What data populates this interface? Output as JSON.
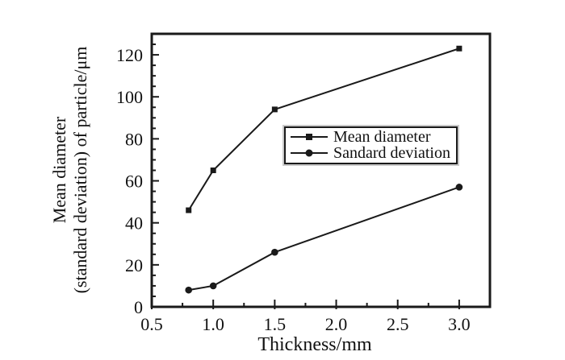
{
  "chart_data": {
    "type": "line",
    "title": "",
    "xlabel": "Thickness/mm",
    "ylabel_line1": "Mean diameter",
    "ylabel_line2": "(standard deviation) of particle/μm",
    "x": [
      0.8,
      1.0,
      1.5,
      3.0
    ],
    "series": [
      {
        "name": "Mean diameter",
        "marker": "square",
        "values": [
          46,
          65,
          94,
          123
        ]
      },
      {
        "name": "Sandard deviation",
        "marker": "circle",
        "values": [
          8,
          10,
          26,
          57
        ]
      }
    ],
    "xlim": [
      0.5,
      3.25
    ],
    "ylim": [
      0,
      130
    ],
    "x_major_ticks": [
      0.5,
      1.0,
      1.5,
      2.0,
      2.5,
      3.0
    ],
    "x_tick_labels": [
      "0.5",
      "1.0",
      "1.5",
      "2.0",
      "2.5",
      "3.0"
    ],
    "x_minor_step": 0.25,
    "y_major_ticks": [
      0,
      20,
      40,
      60,
      80,
      100,
      120
    ],
    "y_tick_labels": [
      "0",
      "20",
      "40",
      "60",
      "80",
      "100",
      "120"
    ],
    "y_minor_step": 5,
    "grid": false,
    "legend_position": "center-right",
    "line_color": "#1a1a1a",
    "text_color": "#111111",
    "background": "#ffffff"
  }
}
